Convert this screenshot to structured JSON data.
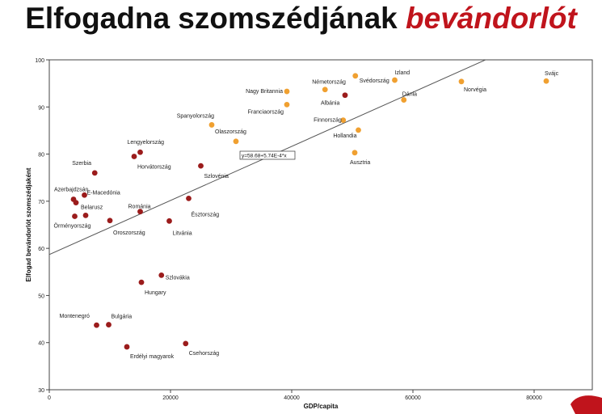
{
  "slide": {
    "title_main": "Elfogadna szomszédjának",
    "title_accent": "bevándorlót",
    "title_color": "#111111",
    "accent_color": "#c0141c"
  },
  "chart_data": {
    "type": "scatter",
    "title": "",
    "xlabel": "GDP/capita",
    "ylabel": "Elfogad bevándorlót szomszédjaként",
    "xlim": [
      0,
      85000
    ],
    "ylim": [
      30,
      100
    ],
    "x_ticks": [
      0,
      20000,
      40000,
      60000,
      80000
    ],
    "y_ticks": [
      30,
      40,
      50,
      60,
      70,
      80,
      90,
      100
    ],
    "grid": false,
    "regression_label": "y=58.68+5.74E-4*x",
    "regression": {
      "intercept": 58.68,
      "slope": 0.000574
    },
    "colors": {
      "orange": "#f0a030",
      "red": "#9b1c1c",
      "line": "#555555"
    },
    "points": [
      {
        "label": "Izland",
        "x": 57000,
        "y": 95.7,
        "group": "orange"
      },
      {
        "label": "Svájc",
        "x": 82000,
        "y": 95.5,
        "group": "orange"
      },
      {
        "label": "Norvégia",
        "x": 68000,
        "y": 95.4,
        "group": "orange"
      },
      {
        "label": "Svédország",
        "x": 50500,
        "y": 96.6,
        "group": "orange"
      },
      {
        "label": "Németország",
        "x": 45500,
        "y": 93.7,
        "group": "orange"
      },
      {
        "label": "Nagy Britannia",
        "x": 39200,
        "y": 93.3,
        "group": "orange"
      },
      {
        "label": "Dánia",
        "x": 58500,
        "y": 91.5,
        "group": "orange"
      },
      {
        "label": "Albánia",
        "x": 48800,
        "y": 92.5,
        "group": "red"
      },
      {
        "label": "Franciaország",
        "x": 39200,
        "y": 90.5,
        "group": "orange"
      },
      {
        "label": "Finnország",
        "x": 48500,
        "y": 87.2,
        "group": "orange"
      },
      {
        "label": "Hollandia",
        "x": 51000,
        "y": 85.1,
        "group": "orange"
      },
      {
        "label": "Spanyolország",
        "x": 26800,
        "y": 86.2,
        "group": "orange"
      },
      {
        "label": "Olaszország",
        "x": 30800,
        "y": 82.7,
        "group": "orange"
      },
      {
        "label": "Ausztria",
        "x": 50400,
        "y": 80.3,
        "group": "orange"
      },
      {
        "label": "Lengyelország",
        "x": 15000,
        "y": 80.4,
        "group": "red"
      },
      {
        "label": "Horvátország",
        "x": 14000,
        "y": 79.5,
        "group": "red"
      },
      {
        "label": "Szlovénia",
        "x": 25000,
        "y": 77.5,
        "group": "red"
      },
      {
        "label": "Szerbia",
        "x": 7500,
        "y": 76.0,
        "group": "red"
      },
      {
        "label": "Azerbajdzsán",
        "x": 4000,
        "y": 70.4,
        "group": "red"
      },
      {
        "label": "E-Macedónia",
        "x": 5800,
        "y": 71.3,
        "group": "red"
      },
      {
        "label": "Belarusz",
        "x": 4400,
        "y": 69.7,
        "group": "red"
      },
      {
        "label": "Észtország",
        "x": 23000,
        "y": 70.6,
        "group": "red"
      },
      {
        "label": "Románia",
        "x": 15000,
        "y": 67.8,
        "group": "red"
      },
      {
        "label": "Örményország",
        "x": 4200,
        "y": 66.8,
        "group": "red"
      },
      {
        "label": "",
        "x": 6000,
        "y": 67.0,
        "group": "red"
      },
      {
        "label": "Oroszország",
        "x": 10000,
        "y": 65.9,
        "group": "red"
      },
      {
        "label": "Litvánia",
        "x": 19800,
        "y": 65.8,
        "group": "red"
      },
      {
        "label": "Szlovákia",
        "x": 18500,
        "y": 54.3,
        "group": "red"
      },
      {
        "label": "Hungary",
        "x": 15200,
        "y": 52.8,
        "group": "red"
      },
      {
        "label": "Montenegró",
        "x": 7800,
        "y": 43.7,
        "group": "red"
      },
      {
        "label": "Bulgária",
        "x": 9800,
        "y": 43.8,
        "group": "red"
      },
      {
        "label": "Erdélyi magyarok",
        "x": 12800,
        "y": 39.1,
        "group": "red"
      },
      {
        "label": "Csehország",
        "x": 22500,
        "y": 39.8,
        "group": "red"
      }
    ]
  }
}
